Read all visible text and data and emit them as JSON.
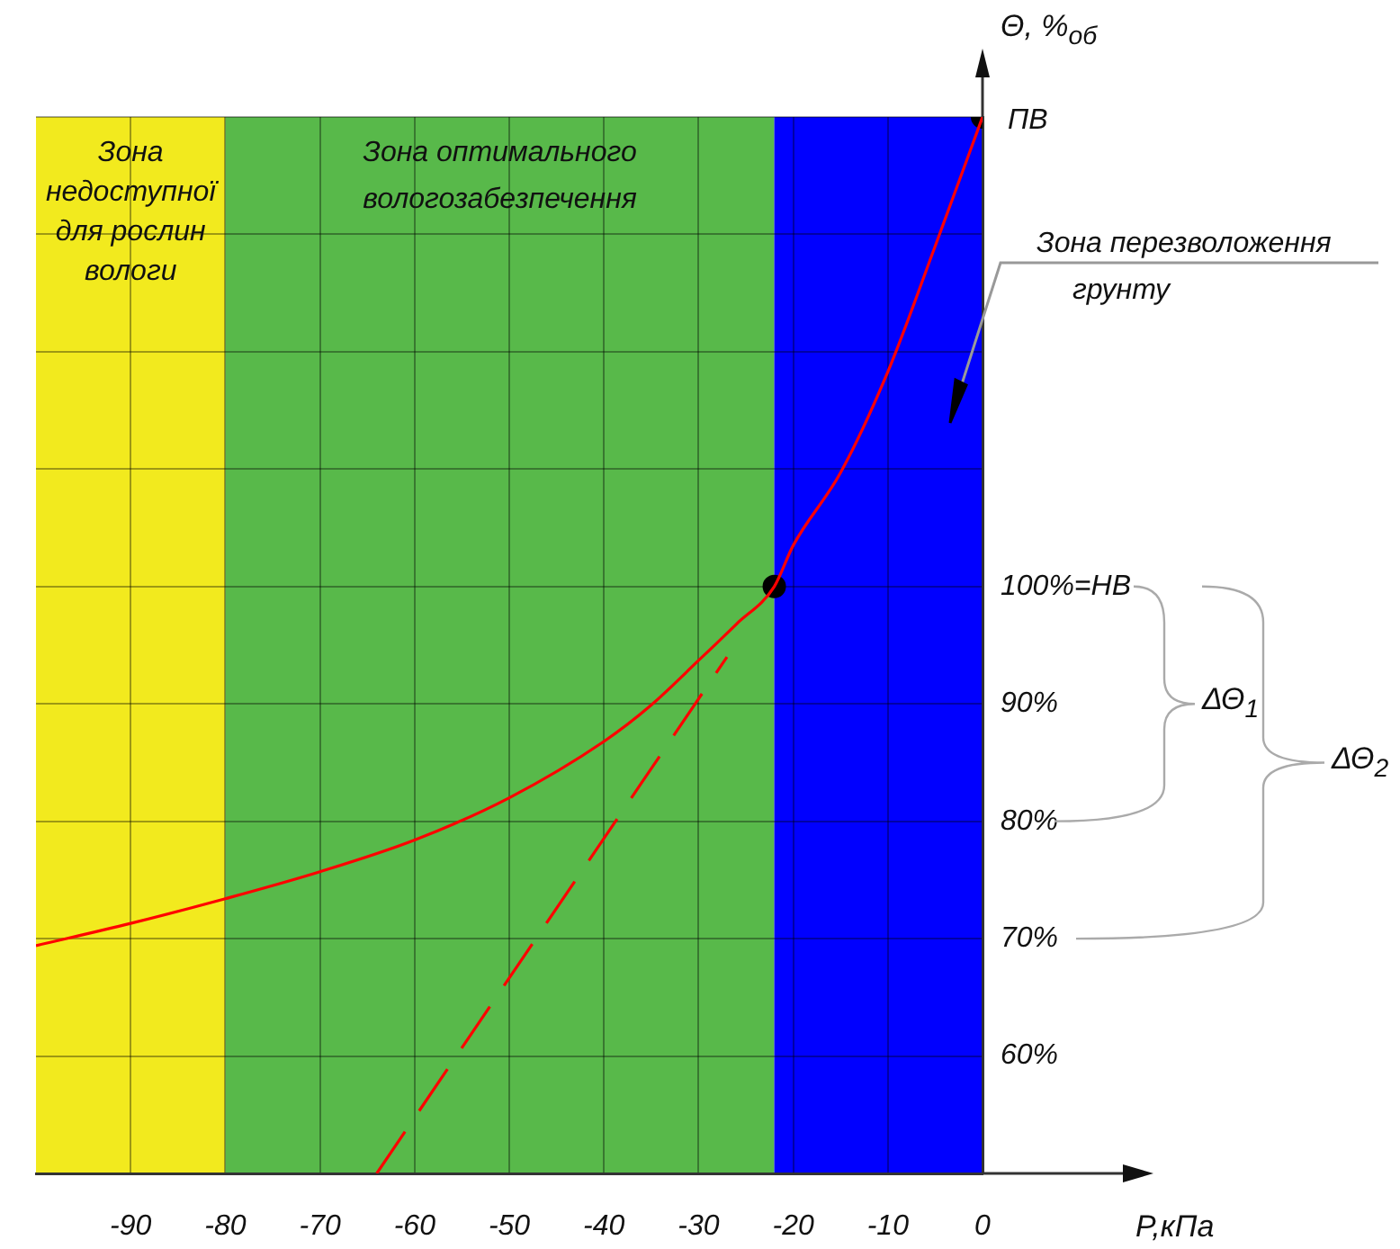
{
  "chart_data": {
    "type": "line",
    "xlabel": "P,кПа",
    "ylabel": "Θ, %$_{об}$",
    "xlim": [
      -100,
      0
    ],
    "xticks": [
      -90,
      -80,
      -70,
      -60,
      -50,
      -40,
      -30,
      -20,
      -10,
      0
    ],
    "ylim": [
      50,
      140
    ],
    "yticks": [
      {
        "value": 50,
        "label": null
      },
      {
        "value": 60,
        "label": "60%"
      },
      {
        "value": 70,
        "label": "70%"
      },
      {
        "value": 80,
        "label": "80%"
      },
      {
        "value": 90,
        "label": "90%"
      },
      {
        "value": 100,
        "label": "100%=НВ"
      },
      {
        "value": 110,
        "label": null
      },
      {
        "value": 120,
        "label": null
      },
      {
        "value": 130,
        "label": null
      },
      {
        "value": 140,
        "label": null
      }
    ],
    "grid": true,
    "legend": false,
    "series": [
      {
        "color": "#ff0000",
        "marker": "none",
        "line_style": "solid",
        "x": [
          -100,
          -90,
          -80,
          -70,
          -60,
          -50,
          -40,
          -35,
          -30,
          -26,
          -22,
          -20,
          -15,
          -10,
          -5,
          0
        ],
        "values": [
          69.4,
          71.3,
          73.4,
          75.7,
          78.4,
          82,
          86.8,
          89.9,
          93.7,
          96.8,
          100,
          103.5,
          109.7,
          118.3,
          129,
          140
        ]
      },
      {
        "color": "#ff0000",
        "marker": "none",
        "line_style": "dashed",
        "x": [
          -64,
          -27
        ],
        "values": [
          50,
          94
        ]
      },
      {
        "type": "scatter",
        "color": "#000000",
        "marker": "circle",
        "x": [
          -22,
          0
        ],
        "values": [
          100,
          140
        ]
      }
    ],
    "bands": [
      {
        "axis": "x",
        "from": -100,
        "to": -80,
        "label": "Зона недоступної для рослин вологи",
        "color": "#f2ea1e"
      },
      {
        "axis": "x",
        "from": -80,
        "to": -22,
        "label": "Зона оптимального вологозабезпечення",
        "color": "#58b94a"
      },
      {
        "axis": "x",
        "from": -22,
        "to": 0,
        "label": "Зона перезволоження грунту",
        "color": "#0000ff"
      }
    ],
    "annotations": [
      {
        "text": "ПВ",
        "x": 0,
        "y": 140
      },
      "ΔΘ$_{1}$",
      "ΔΘ$_{2}$"
    ]
  }
}
